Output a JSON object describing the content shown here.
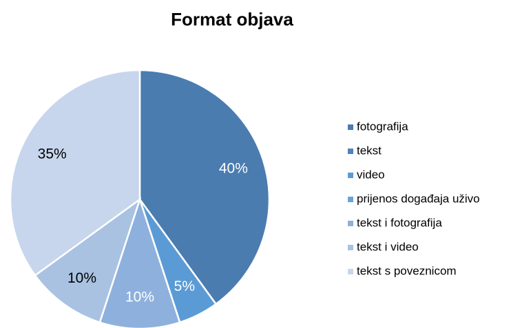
{
  "chart_data": {
    "type": "pie",
    "title": "Format objava",
    "categories": [
      "fotografija",
      "tekst",
      "video",
      "prijenos događaja uživo",
      "tekst i fotografija",
      "tekst i video",
      "tekst s poveznicom"
    ],
    "values": [
      40,
      0,
      5,
      0,
      10,
      10,
      35
    ],
    "value_labels": [
      "40%",
      null,
      "5%",
      null,
      "10%",
      "10%",
      "35%"
    ],
    "colors": [
      "#4a7cb0",
      "#4f83bd",
      "#5b9bd5",
      "#6aa3d8",
      "#8eb0dc",
      "#a9c2e2",
      "#c7d6ec"
    ],
    "legend": "right"
  }
}
